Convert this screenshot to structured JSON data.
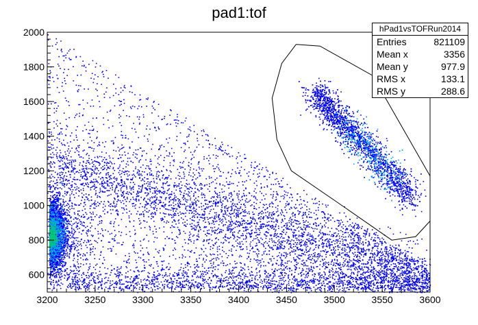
{
  "chart_data": {
    "type": "heatmap",
    "title": "pad1:tof",
    "xlim": [
      3200,
      3600
    ],
    "ylim": [
      500,
      2000
    ],
    "x_ticks": [
      "3200",
      "3250",
      "3300",
      "3350",
      "3400",
      "3450",
      "3500",
      "3550",
      "3600"
    ],
    "x_tick_values": [
      3200,
      3250,
      3300,
      3350,
      3400,
      3450,
      3500,
      3550,
      3600
    ],
    "y_ticks": [
      "600",
      "800",
      "1000",
      "1200",
      "1400",
      "1600",
      "1800",
      "2000"
    ],
    "y_tick_values": [
      600,
      800,
      1000,
      1200,
      1400,
      1600,
      1800,
      2000
    ],
    "stats": {
      "name": "hPad1vsTOFRun2014",
      "rows": [
        {
          "label": "Entries",
          "value": "821109"
        },
        {
          "label": "Mean x",
          "value": "3356"
        },
        {
          "label": "Mean y",
          "value": "977.9"
        },
        {
          "label": "RMS x",
          "value": "133.1"
        },
        {
          "label": "RMS y",
          "value": "288.6"
        }
      ]
    },
    "entries": 821109,
    "mean_x": 3356,
    "mean_y": 977.9,
    "rms_x": 133.1,
    "rms_y": 288.6,
    "clusters": [
      {
        "center_x": 3202,
        "center_y": 830,
        "spread_x": 8,
        "spread_y": 70,
        "peak": "green"
      },
      {
        "center_x": 3530,
        "center_y": 1280,
        "direction": "diagonal",
        "x_range": [
          3480,
          3590
        ],
        "y_range": [
          1000,
          1650
        ]
      }
    ],
    "graphical_cut": [
      [
        3460,
        1930
      ],
      [
        3485,
        1920
      ],
      [
        3540,
        1750
      ],
      [
        3600,
        1170
      ],
      [
        3600,
        910
      ],
      [
        3585,
        820
      ],
      [
        3560,
        800
      ],
      [
        3500,
        1030
      ],
      [
        3455,
        1200
      ],
      [
        3440,
        1380
      ],
      [
        3435,
        1620
      ],
      [
        3445,
        1820
      ],
      [
        3460,
        1930
      ]
    ],
    "colors": {
      "low": "#0000ff",
      "mid": "#00a0ff",
      "high": "#00cc66",
      "frame": "#000000",
      "cut": "#000000"
    }
  }
}
